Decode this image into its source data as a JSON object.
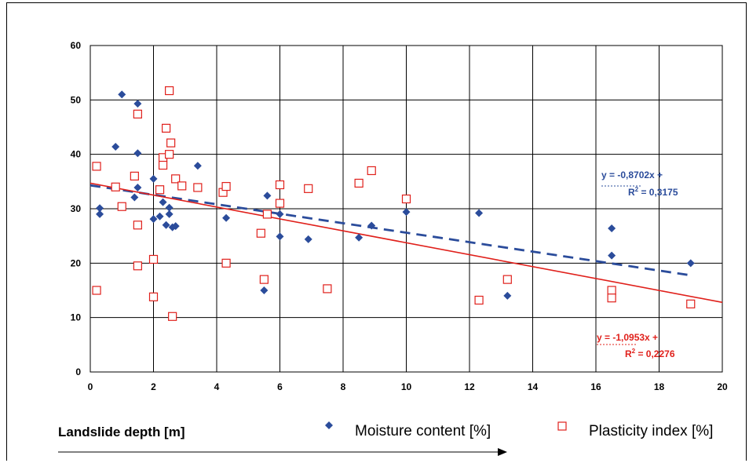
{
  "chart_data": {
    "type": "scatter",
    "xlabel": "Landslide depth [m]",
    "xlim": [
      0,
      20
    ],
    "ylim": [
      0,
      60
    ],
    "x_ticks": [
      "0",
      "2",
      "4",
      "6",
      "8",
      "10",
      "12",
      "14",
      "16",
      "18",
      "20"
    ],
    "y_ticks": [
      "0",
      "10",
      "20",
      "30",
      "40",
      "50",
      "60"
    ],
    "grid": true,
    "legend_position": "bottom",
    "series": [
      {
        "name": "Moisture content [%]",
        "marker": "diamond",
        "color": "#2B4C9B",
        "points": [
          [
            0.3,
            30.1
          ],
          [
            0.3,
            29.0
          ],
          [
            0.8,
            41.4
          ],
          [
            1.0,
            51.0
          ],
          [
            1.4,
            32.1
          ],
          [
            1.5,
            33.9
          ],
          [
            1.5,
            40.2
          ],
          [
            1.5,
            49.3
          ],
          [
            2.0,
            35.5
          ],
          [
            2.0,
            28.1
          ],
          [
            2.2,
            28.6
          ],
          [
            2.3,
            31.2
          ],
          [
            2.4,
            27.0
          ],
          [
            2.5,
            29.0
          ],
          [
            2.5,
            30.2
          ],
          [
            2.6,
            26.6
          ],
          [
            2.7,
            26.8
          ],
          [
            3.4,
            37.9
          ],
          [
            4.3,
            28.3
          ],
          [
            5.5,
            15.0
          ],
          [
            5.6,
            32.4
          ],
          [
            6.0,
            29.0
          ],
          [
            6.0,
            24.9
          ],
          [
            6.9,
            24.4
          ],
          [
            8.5,
            24.7
          ],
          [
            8.9,
            26.9
          ],
          [
            10.0,
            29.4
          ],
          [
            12.3,
            29.2
          ],
          [
            13.2,
            14.0
          ],
          [
            16.5,
            26.4
          ],
          [
            16.5,
            21.4
          ],
          [
            19.0,
            20.0
          ]
        ],
        "trendline": {
          "slope": -0.8702,
          "intercept": 34.3,
          "style": "dashed",
          "equation": "y = -0,8702x + ",
          "r2": "R2 = 0,3175"
        }
      },
      {
        "name": "Plasticity index [%]",
        "marker": "open-square",
        "color": "#E0201B",
        "points": [
          [
            0.2,
            37.8
          ],
          [
            0.2,
            15.0
          ],
          [
            0.8,
            34.0
          ],
          [
            1.0,
            30.4
          ],
          [
            1.4,
            36.0
          ],
          [
            1.5,
            27.0
          ],
          [
            1.5,
            19.5
          ],
          [
            1.5,
            47.4
          ],
          [
            2.0,
            20.7
          ],
          [
            2.0,
            13.8
          ],
          [
            2.2,
            33.5
          ],
          [
            2.3,
            39.4
          ],
          [
            2.3,
            38.0
          ],
          [
            2.4,
            44.8
          ],
          [
            2.5,
            51.7
          ],
          [
            2.5,
            40.0
          ],
          [
            2.55,
            42.1
          ],
          [
            2.6,
            10.2
          ],
          [
            2.7,
            35.5
          ],
          [
            2.9,
            34.2
          ],
          [
            3.4,
            33.9
          ],
          [
            4.2,
            33.0
          ],
          [
            4.3,
            34.1
          ],
          [
            4.3,
            20.0
          ],
          [
            5.4,
            25.5
          ],
          [
            5.5,
            17.0
          ],
          [
            5.6,
            29.0
          ],
          [
            6.0,
            34.4
          ],
          [
            6.0,
            31.0
          ],
          [
            6.9,
            33.7
          ],
          [
            7.5,
            15.3
          ],
          [
            8.5,
            34.7
          ],
          [
            8.9,
            37.0
          ],
          [
            10.0,
            31.8
          ],
          [
            12.3,
            13.2
          ],
          [
            13.2,
            17.0
          ],
          [
            16.5,
            15.0
          ],
          [
            16.5,
            13.6
          ],
          [
            19.0,
            12.5
          ]
        ],
        "trendline": {
          "slope": -1.0953,
          "intercept": 34.7,
          "style": "solid",
          "equation": "y = -1,0953x + ",
          "r2": "R2 = 0,2276"
        }
      }
    ]
  },
  "legend": {
    "moisture": "Moisture content [%]",
    "plasticity": "Plasticity index [%]"
  },
  "annotations": {
    "blue_eq": "y = -0,8702x + ",
    "blue_r2_prefix": "R",
    "blue_r2_sup": "2",
    "blue_r2_value": " = 0,3175",
    "red_eq": "y = -1,0953x + ",
    "red_r2_prefix": "R",
    "red_r2_sup": "2",
    "red_r2_value": " = 0,2276"
  },
  "colors": {
    "blue": "#2B4C9B",
    "red": "#E0201B"
  }
}
